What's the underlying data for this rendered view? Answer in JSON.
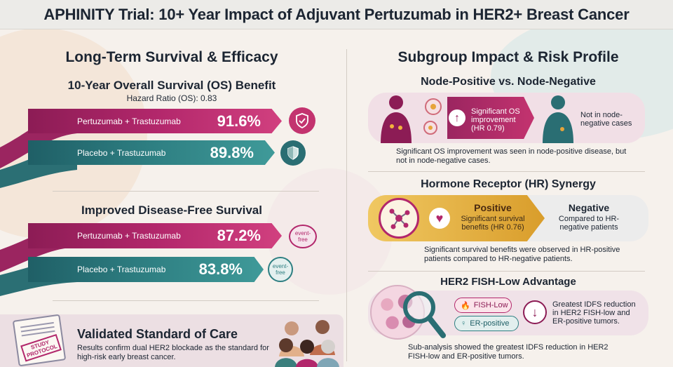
{
  "title": "APHINITY Trial: 10+ Year Impact of Adjuvant Pertuzumab in HER2+ Breast Cancer",
  "left": {
    "heading": "Long-Term Survival & Efficacy",
    "os": {
      "heading": "10-Year Overall Survival (OS) Benefit",
      "hazard_ratio": "Hazard Ratio (OS): 0.83",
      "arm1_label": "Pertuzumab + Trastuzumab",
      "arm1_value": "91.6%",
      "arm2_label": "Placebo + Trastuzumab",
      "arm2_value": "89.8%"
    },
    "dfs": {
      "heading": "Improved Disease-Free Survival",
      "arm1_label": "Pertuzumab + Trastuzumab",
      "arm1_value": "87.2%",
      "arm1_badge": "event-free",
      "arm2_label": "Placebo + Trastuzumab",
      "arm2_value": "83.8%",
      "arm2_badge": "event-free"
    },
    "standard": {
      "protocol_label": "STUDY PROTOCOL",
      "heading": "Validated Standard of Care",
      "body": "Results confirm dual HER2 blockade as the standard for high-risk early breast cancer."
    }
  },
  "right": {
    "heading": "Subgroup Impact & Risk Profile",
    "node": {
      "heading": "Node-Positive vs. Node-Negative",
      "positive_text": "Significant OS improvement (HR 0.79)",
      "negative_text": "Not in node-negative cases",
      "caption": "Significant OS improvement was seen in node-positive disease, but not in node-negative cases."
    },
    "hr": {
      "heading": "Hormone Receptor (HR) Synergy",
      "positive_title": "Positive",
      "positive_text": "Significant survival benefits (HR 0.76)",
      "negative_title": "Negative",
      "negative_text": "Compared to HR-negative patients",
      "caption": "Significant survival benefits were observed in HR-positive patients compared to HR-negative patients."
    },
    "fish": {
      "heading": "HER2 FISH-Low Advantage",
      "chip1": "FISH-Low",
      "chip2": "ER-positive",
      "result_text": "Greatest IDFS reduction in HER2 FISH-low and ER-positive tumors.",
      "caption": "Sub-analysis showed the greatest IDFS reduction in HER2 FISH-low and ER-positive tumors."
    }
  },
  "colors": {
    "magenta": "#b2276b",
    "teal": "#2e7f82",
    "gold": "#e0a832",
    "background": "#f6f1ec"
  }
}
